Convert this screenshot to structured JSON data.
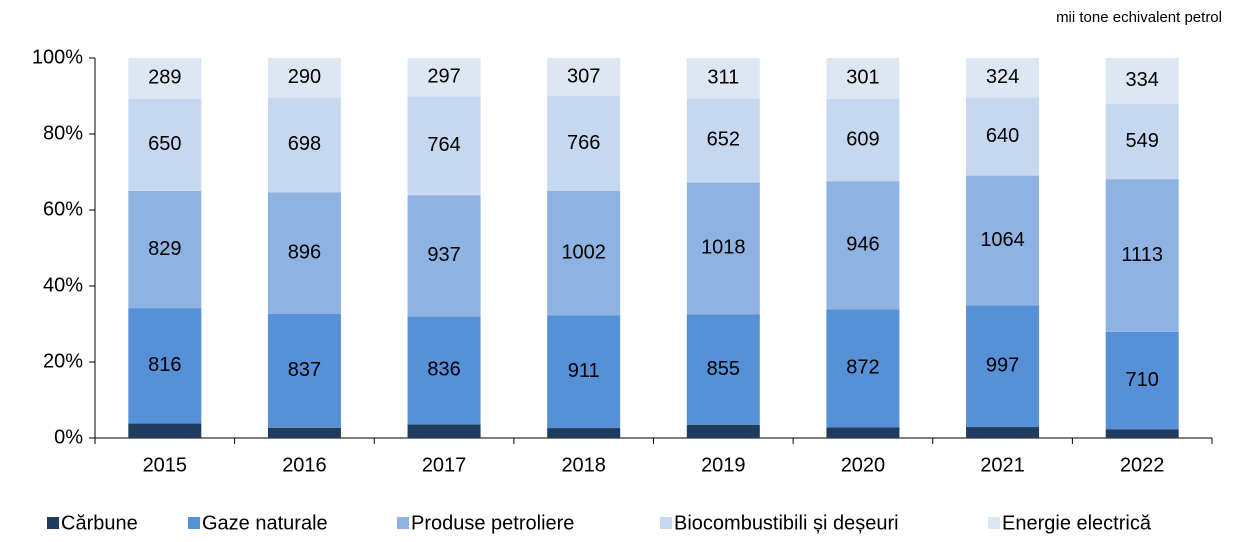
{
  "chart_data": {
    "type": "bar",
    "stacked": "percent",
    "unit_note": "mii tone echivalent petrol",
    "categories": [
      "2015",
      "2016",
      "2017",
      "2018",
      "2019",
      "2020",
      "2021",
      "2022"
    ],
    "series": [
      {
        "name": "Cărbune",
        "color": "#1f3b5e",
        "values": [
          102,
          75,
          105,
          80,
          102,
          79,
          90,
          64
        ]
      },
      {
        "name": "Gaze naturale",
        "color": "#5690d6",
        "values": [
          816,
          837,
          836,
          911,
          855,
          872,
          997,
          710
        ]
      },
      {
        "name": "Produse petroliere",
        "color": "#8eb3e2",
        "values": [
          829,
          896,
          937,
          1002,
          1018,
          946,
          1064,
          1113
        ]
      },
      {
        "name": "Biocombustibili și deșeuri",
        "color": "#c6d8ef",
        "values": [
          650,
          698,
          764,
          766,
          652,
          609,
          640,
          549
        ]
      },
      {
        "name": "Energie electrică",
        "color": "#dde7f3",
        "values": [
          289,
          290,
          297,
          307,
          311,
          301,
          324,
          334
        ]
      }
    ],
    "ylim": [
      0,
      100
    ],
    "yticks": [
      {
        "value": 0,
        "label": "0%"
      },
      {
        "value": 20,
        "label": "20%"
      },
      {
        "value": 40,
        "label": "40%"
      },
      {
        "value": 60,
        "label": "60%"
      },
      {
        "value": 80,
        "label": "80%"
      },
      {
        "value": 100,
        "label": "100%"
      }
    ],
    "grid": false,
    "legend": "bottom"
  }
}
